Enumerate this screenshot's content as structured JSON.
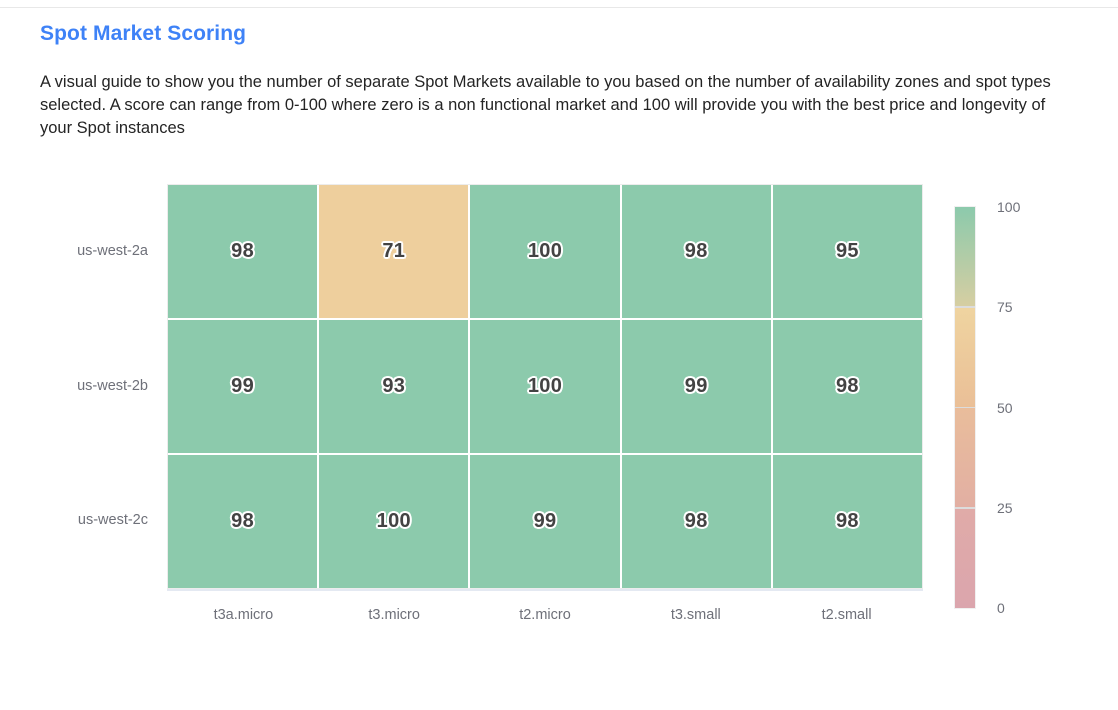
{
  "header": {
    "title": "Spot Market Scoring",
    "title_color": "#3E82F7",
    "description": "A visual guide to show you the number of separate Spot Markets available to you based on the number of availability zones and spot types selected. A score can range from 0-100 where zero is a non functional market and 100 will provide you with the best price and longevity of your Spot instances"
  },
  "chart_data": {
    "type": "heatmap",
    "title": "Spot Market Scoring",
    "x_categories": [
      "t3a.micro",
      "t3.micro",
      "t2.micro",
      "t3.small",
      "t2.small"
    ],
    "y_categories": [
      "us-west-2a",
      "us-west-2b",
      "us-west-2c"
    ],
    "rows": [
      [
        98,
        71,
        100,
        98,
        95
      ],
      [
        99,
        93,
        100,
        99,
        98
      ],
      [
        98,
        100,
        99,
        98,
        98
      ]
    ],
    "value_range": [
      0,
      100
    ],
    "grid": "off",
    "legend": "none",
    "color_scale": {
      "stops": [
        {
          "v": 0,
          "c": "#DBA5AD"
        },
        {
          "v": 25,
          "c": "#E1AEA4"
        },
        {
          "v": 50,
          "c": "#EABF95"
        },
        {
          "v": 75,
          "c": "#EFD29E"
        },
        {
          "v": 90,
          "c": "#8CCAAC"
        },
        {
          "v": 100,
          "c": "#8CCAAC"
        }
      ]
    },
    "colorbar": {
      "position": "right",
      "ticks": [
        "100",
        "75",
        "50",
        "25",
        "0"
      ],
      "segments": [
        {
          "top_color": "#8CCAAC",
          "bottom_color": "#D6CEA2"
        },
        {
          "top_color": "#EFD4A0",
          "bottom_color": "#EABF97"
        },
        {
          "top_color": "#E9BD9B",
          "bottom_color": "#E2AFA3"
        },
        {
          "top_color": "#E0ABA8",
          "bottom_color": "#DBA5AD"
        }
      ]
    },
    "colors": {
      "cell_text": "#434343",
      "axis_label": "#6E7079"
    }
  }
}
